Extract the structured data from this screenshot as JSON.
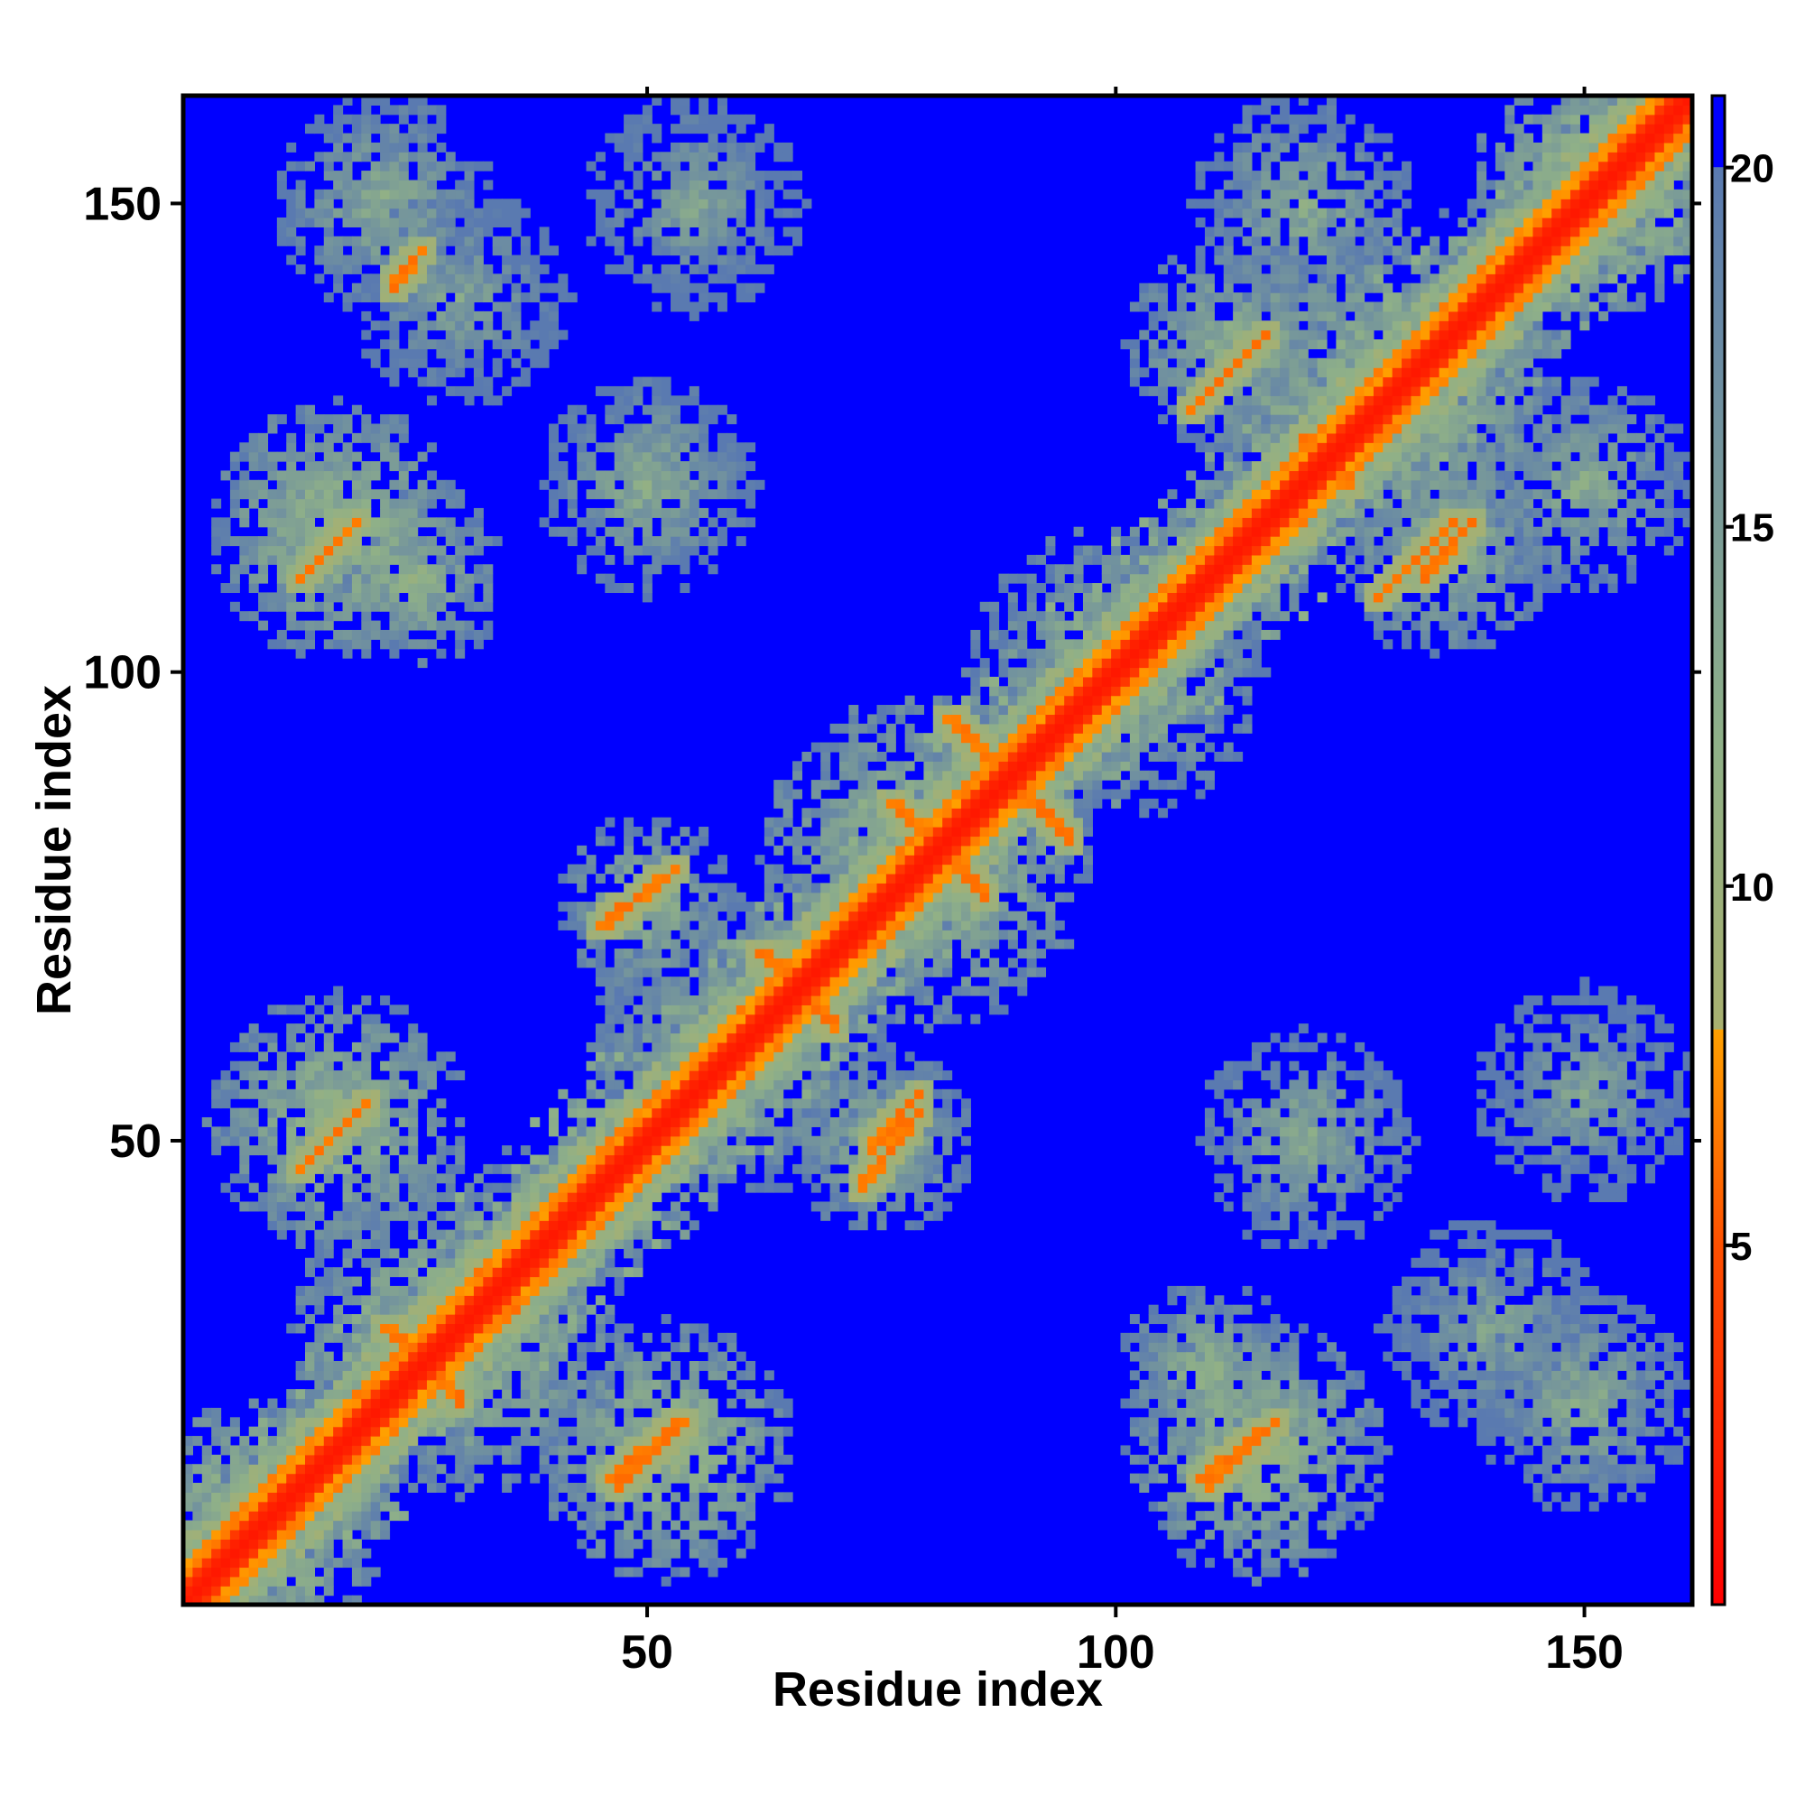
{
  "chart_data": {
    "type": "heatmap",
    "title": "",
    "xlabel": "Residue index",
    "ylabel": "Residue index",
    "x_range": [
      1,
      161
    ],
    "y_range": [
      1,
      161
    ],
    "x_ticks": [
      {
        "value": 50,
        "label": "50"
      },
      {
        "value": 100,
        "label": "100"
      },
      {
        "value": 150,
        "label": "150"
      }
    ],
    "y_ticks": [
      {
        "value": 50,
        "label": "50"
      },
      {
        "value": 100,
        "label": "100"
      },
      {
        "value": 150,
        "label": "150"
      }
    ],
    "colorbar": {
      "range": [
        0,
        21
      ],
      "ticks": [
        {
          "value": 5,
          "label": "5"
        },
        {
          "value": 10,
          "label": "10"
        },
        {
          "value": 15,
          "label": "15"
        },
        {
          "value": 20,
          "label": "20"
        }
      ],
      "stops": [
        {
          "value": 0,
          "color": "#ff0000"
        },
        {
          "value": 5,
          "color": "#ff5000"
        },
        {
          "value": 8,
          "color": "#ffa000"
        },
        {
          "value": 8.01,
          "color": "#a8b070"
        },
        {
          "value": 12,
          "color": "#8fb088"
        },
        {
          "value": 20,
          "color": "#5a7ab0"
        },
        {
          "value": 20.01,
          "color": "#0000ff"
        },
        {
          "value": 21,
          "color": "#0000ff"
        }
      ],
      "background_color": "#0000ff"
    },
    "feature_blobs": [
      {
        "x": 8,
        "y": 8,
        "r": 14,
        "v": 10
      },
      {
        "x": 30,
        "y": 30,
        "r": 18,
        "v": 11
      },
      {
        "x": 60,
        "y": 60,
        "r": 16,
        "v": 12
      },
      {
        "x": 80,
        "y": 80,
        "r": 18,
        "v": 11
      },
      {
        "x": 100,
        "y": 100,
        "r": 16,
        "v": 12
      },
      {
        "x": 130,
        "y": 130,
        "r": 18,
        "v": 11
      },
      {
        "x": 152,
        "y": 152,
        "r": 14,
        "v": 10
      },
      {
        "x": 17,
        "y": 52,
        "r": 14,
        "v": 11
      },
      {
        "x": 52,
        "y": 17,
        "r": 14,
        "v": 11
      },
      {
        "x": 17,
        "y": 115,
        "r": 14,
        "v": 11
      },
      {
        "x": 115,
        "y": 17,
        "r": 14,
        "v": 11
      },
      {
        "x": 50,
        "y": 120,
        "r": 12,
        "v": 13
      },
      {
        "x": 120,
        "y": 50,
        "r": 12,
        "v": 13
      },
      {
        "x": 22,
        "y": 150,
        "r": 12,
        "v": 13
      },
      {
        "x": 150,
        "y": 22,
        "r": 12,
        "v": 13
      },
      {
        "x": 55,
        "y": 150,
        "r": 12,
        "v": 14
      },
      {
        "x": 150,
        "y": 55,
        "r": 12,
        "v": 14
      },
      {
        "x": 113,
        "y": 135,
        "r": 12,
        "v": 12
      },
      {
        "x": 135,
        "y": 113,
        "r": 12,
        "v": 12
      },
      {
        "x": 120,
        "y": 150,
        "r": 12,
        "v": 13
      },
      {
        "x": 150,
        "y": 120,
        "r": 12,
        "v": 13
      },
      {
        "x": 75,
        "y": 50,
        "r": 10,
        "v": 12
      },
      {
        "x": 50,
        "y": 75,
        "r": 10,
        "v": 12
      },
      {
        "x": 140,
        "y": 30,
        "r": 12,
        "v": 14
      },
      {
        "x": 30,
        "y": 140,
        "r": 12,
        "v": 14
      },
      {
        "x": 110,
        "y": 25,
        "r": 10,
        "v": 12
      },
      {
        "x": 25,
        "y": 110,
        "r": 10,
        "v": 12
      }
    ],
    "contact_segments": [
      {
        "x1": 13,
        "y1": 110,
        "x2": 19,
        "y2": 116
      },
      {
        "x1": 110,
        "y1": 13,
        "x2": 116,
        "y2": 19
      },
      {
        "x1": 13,
        "y1": 47,
        "x2": 20,
        "y2": 54
      },
      {
        "x1": 47,
        "y1": 13,
        "x2": 54,
        "y2": 20
      },
      {
        "x1": 46,
        "y1": 14,
        "x2": 53,
        "y2": 20
      },
      {
        "x1": 109,
        "y1": 14,
        "x2": 117,
        "y2": 20
      },
      {
        "x1": 45,
        "y1": 73,
        "x2": 53,
        "y2": 79
      },
      {
        "x1": 73,
        "y1": 45,
        "x2": 79,
        "y2": 53
      },
      {
        "x1": 74,
        "y1": 49,
        "x2": 79,
        "y2": 55
      },
      {
        "x1": 76,
        "y1": 86,
        "x2": 86,
        "y2": 76
      },
      {
        "x1": 82,
        "y1": 95,
        "x2": 95,
        "y2": 82
      },
      {
        "x1": 62,
        "y1": 70,
        "x2": 70,
        "y2": 62
      },
      {
        "x1": 108,
        "y1": 128,
        "x2": 116,
        "y2": 136
      },
      {
        "x1": 128,
        "y1": 108,
        "x2": 136,
        "y2": 116
      },
      {
        "x1": 133,
        "y1": 110,
        "x2": 138,
        "y2": 116
      },
      {
        "x1": 120,
        "y1": 125,
        "x2": 125,
        "y2": 120
      },
      {
        "x1": 22,
        "y1": 30,
        "x2": 30,
        "y2": 22
      },
      {
        "x1": 32,
        "y1": 36,
        "x2": 36,
        "y2": 32
      },
      {
        "x1": 23,
        "y1": 141,
        "x2": 26,
        "y2": 145
      }
    ],
    "diagonal": {
      "core_value": 1.5,
      "offset_1": 3.5,
      "offset_2": 6.5,
      "offset_3": 9
    },
    "random_seed": 7
  }
}
